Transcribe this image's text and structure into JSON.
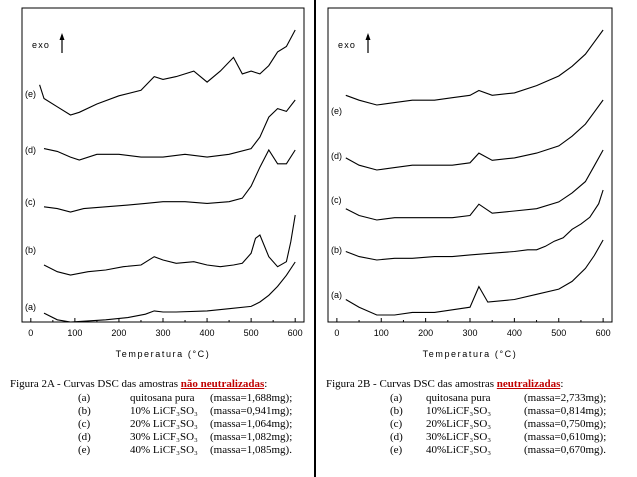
{
  "panels": [
    {
      "id": "2A",
      "exo_label": "exo",
      "xlabel": "Temperatura (°C)",
      "xlim": [
        -20,
        620
      ],
      "xticks": [
        0,
        100,
        200,
        300,
        400,
        500,
        600
      ],
      "caption": {
        "prefix": "Figura 2A - Curvas DSC das amostras ",
        "highlight": "não neutralizadas",
        "suffix": ":",
        "rows": [
          {
            "id": "(a)",
            "sample": "quitosana pura",
            "mass": "(massa=1,688mg);"
          },
          {
            "id": "(b)",
            "sample": "10%   LiCF₃SO₃",
            "mass": "(massa=0,941mg);"
          },
          {
            "id": "(c)",
            "sample": "20%   LiCF₃SO₃",
            "mass": "(massa=1,064mg);"
          },
          {
            "id": "(d)",
            "sample": "30%   LiCF₃SO₃",
            "mass": "(massa=1,082mg);"
          },
          {
            "id": "(e)",
            "sample": "40%   LiCF₃SO₃",
            "mass": "(massa=1,085mg)."
          }
        ]
      }
    },
    {
      "id": "2B",
      "exo_label": "exo",
      "xlabel": "Temperatura (°C)",
      "xlim": [
        -20,
        620
      ],
      "xticks": [
        0,
        100,
        200,
        300,
        400,
        500,
        600
      ],
      "caption": {
        "prefix": "Figura 2B - Curvas DSC das amostras ",
        "highlight": "neutralizadas",
        "suffix": ":",
        "rows": [
          {
            "id": "(a)",
            "sample": "quitosana pura",
            "mass": "(massa=2,733mg);"
          },
          {
            "id": "(b)",
            "sample": "10%LiCF₃SO₃",
            "mass": "(massa=0,814mg);"
          },
          {
            "id": "(c)",
            "sample": "20%LiCF₃SO₃",
            "mass": "(massa=0,750mg);"
          },
          {
            "id": "(d)",
            "sample": "30%LiCF₃SO₃",
            "mass": "(massa=0,610mg);"
          },
          {
            "id": "(e)",
            "sample": "40%LiCF₃SO₃",
            "mass": "(massa=0,670mg)."
          }
        ]
      }
    }
  ],
  "chart_data": [
    {
      "type": "line",
      "panel": "2A",
      "xlabel": "Temperatura (°C)",
      "ylabel": "exo",
      "xlim": [
        -20,
        620
      ],
      "ylim": [
        0,
        100
      ],
      "series": [
        {
          "name": "(a)",
          "x": [
            30,
            60,
            90,
            130,
            170,
            220,
            260,
            280,
            300,
            330,
            400,
            450,
            500,
            520,
            540,
            560,
            580,
            600
          ],
          "y": [
            6,
            3,
            2,
            2.5,
            3,
            4,
            5.5,
            7,
            6.5,
            6.5,
            7,
            8,
            9,
            11,
            14,
            18,
            23,
            29
          ]
        },
        {
          "name": "(b)",
          "x": [
            30,
            60,
            90,
            130,
            170,
            210,
            250,
            280,
            300,
            330,
            370,
            400,
            430,
            460,
            480,
            500,
            510,
            520,
            540,
            560,
            580,
            590,
            600
          ],
          "y": [
            28,
            24,
            22,
            24,
            25,
            27,
            28,
            33,
            31,
            29,
            30,
            28,
            27,
            28,
            29,
            35,
            44,
            46,
            33,
            27,
            30,
            42,
            58
          ]
        },
        {
          "name": "(c)",
          "x": [
            30,
            60,
            90,
            120,
            170,
            220,
            260,
            300,
            350,
            400,
            450,
            480,
            500,
            520,
            540,
            560,
            580,
            600
          ],
          "y": [
            45,
            44,
            42,
            44,
            45,
            46,
            47,
            48,
            48,
            47,
            48,
            50,
            57,
            68,
            78,
            70,
            70,
            78
          ]
        },
        {
          "name": "(d)",
          "x": [
            30,
            60,
            90,
            110,
            150,
            200,
            250,
            300,
            350,
            400,
            450,
            500,
            520,
            540,
            560,
            580,
            600
          ],
          "y": [
            63,
            62,
            60,
            59,
            61,
            61,
            60,
            60,
            61,
            60,
            61,
            63,
            67,
            74,
            77,
            76,
            80
          ]
        },
        {
          "name": "(e)",
          "x": [
            20,
            30,
            60,
            90,
            110,
            150,
            200,
            250,
            280,
            300,
            330,
            370,
            400,
            430,
            460,
            480,
            500,
            520,
            540,
            560,
            580,
            600
          ],
          "y": [
            78,
            73,
            70,
            67,
            68,
            71,
            74,
            76,
            81,
            80,
            81,
            83,
            79,
            83,
            88,
            82,
            83,
            82,
            85,
            90,
            92,
            98
          ]
        }
      ]
    },
    {
      "type": "line",
      "panel": "2B",
      "xlabel": "Temperatura (°C)",
      "ylabel": "exo",
      "xlim": [
        -20,
        620
      ],
      "ylim": [
        0,
        100
      ],
      "series": [
        {
          "name": "(a)",
          "x": [
            20,
            50,
            90,
            130,
            170,
            220,
            260,
            300,
            320,
            340,
            400,
            450,
            500,
            530,
            560,
            580,
            600
          ],
          "y": [
            12,
            9,
            6,
            6,
            7,
            7,
            8,
            9,
            17,
            11,
            12,
            14,
            16,
            19,
            24,
            29,
            35
          ]
        },
        {
          "name": "(b)",
          "x": [
            20,
            50,
            90,
            130,
            170,
            220,
            260,
            300,
            350,
            400,
            430,
            450,
            470,
            490,
            510,
            530,
            550,
            570,
            590,
            600
          ],
          "y": [
            32,
            29,
            27,
            28,
            28,
            29,
            29,
            30,
            31,
            32,
            33,
            33,
            35,
            38,
            40,
            45,
            48,
            52,
            60,
            68
          ]
        },
        {
          "name": "(c)",
          "x": [
            20,
            50,
            90,
            130,
            170,
            220,
            260,
            300,
            320,
            350,
            400,
            450,
            500,
            530,
            560,
            580,
            600
          ],
          "y": [
            46,
            43,
            41,
            42,
            42,
            42,
            42,
            43,
            48,
            44,
            45,
            46,
            49,
            53,
            58,
            65,
            72
          ]
        },
        {
          "name": "(d)",
          "x": [
            20,
            50,
            90,
            130,
            170,
            220,
            260,
            300,
            320,
            350,
            400,
            450,
            500,
            530,
            560,
            580,
            600
          ],
          "y": [
            58,
            55,
            53,
            54,
            55,
            55,
            55,
            56,
            60,
            57,
            58,
            60,
            63,
            67,
            72,
            77,
            82
          ]
        },
        {
          "name": "(e)",
          "x": [
            20,
            50,
            90,
            130,
            170,
            220,
            260,
            300,
            320,
            350,
            400,
            450,
            500,
            530,
            560,
            580,
            600
          ],
          "y": [
            72,
            70,
            68,
            69,
            70,
            70,
            71,
            72,
            74,
            72,
            73,
            76,
            80,
            84,
            89,
            94,
            99
          ]
        }
      ]
    }
  ]
}
